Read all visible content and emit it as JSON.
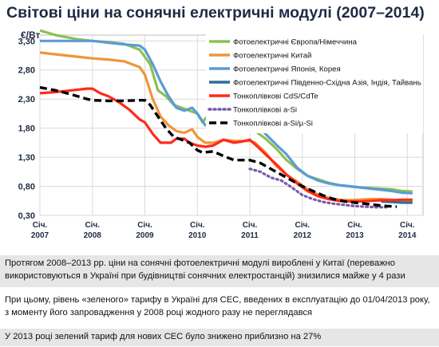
{
  "page": {
    "title": "Світові ціни на сонячні електричні модулі (2007–2014)"
  },
  "notes": [
    "Протягом 2008–2013 рр. ціни на сонячні фотоелектричні модулі вироблені у Китаї (переважно використовуються в Україні при будівництві сонячних електростанцій) знизилися майже у 4 рази",
    "При цьому, рівень «зеленого» тарифу в Україні для СЕС, введених в експлуатацію до 01/04/2013 року, з моменту його запровадження у 2008 році жодного разу не переглядався",
    "У 2013 році зелений тариф для нових СЕС було знижено приблизно на 27%"
  ],
  "chart_data": {
    "type": "line",
    "ylabel": "€/Вт",
    "ylim": [
      0.3,
      3.4
    ],
    "xlim": [
      2007,
      2014.3
    ],
    "yticks": [
      "3,30",
      "2,80",
      "2,30",
      "1,80",
      "1,30",
      "0,80",
      "0,30"
    ],
    "ytick_values": [
      3.3,
      2.8,
      2.3,
      1.8,
      1.3,
      0.8,
      0.3
    ],
    "xticks": [
      {
        "line1": "Січ.",
        "line2": "2007",
        "x": 2007
      },
      {
        "line1": "Січ.",
        "line2": "2008",
        "x": 2008
      },
      {
        "line1": "Січ.",
        "line2": "2009",
        "x": 2009
      },
      {
        "line1": "Січ.",
        "line2": "2010",
        "x": 2010
      },
      {
        "line1": "Січ.",
        "line2": "2011",
        "x": 2011
      },
      {
        "line1": "Січ.",
        "line2": "2012",
        "x": 2012
      },
      {
        "line1": "Січ.",
        "line2": "2013",
        "x": 2013
      },
      {
        "line1": "Січ.",
        "line2": "2014",
        "x": 2014
      }
    ],
    "grid": true,
    "legend": "top-right",
    "series": [
      {
        "name": "Фотоелектричні Європа/Німеччина",
        "color": "#8cc152",
        "dash": "solid",
        "points": [
          [
            2007.0,
            3.48
          ],
          [
            2007.3,
            3.4
          ],
          [
            2007.7,
            3.33
          ],
          [
            2008.0,
            3.3
          ],
          [
            2008.3,
            3.28
          ],
          [
            2008.6,
            3.25
          ],
          [
            2008.9,
            3.15
          ],
          [
            2009.1,
            2.9
          ],
          [
            2009.25,
            2.45
          ],
          [
            2009.4,
            2.35
          ],
          [
            2009.55,
            2.2
          ],
          [
            2009.7,
            2.15
          ],
          [
            2009.85,
            2.1
          ],
          [
            2010.0,
            2.05
          ],
          [
            2010.1,
            1.9
          ],
          [
            2010.2,
            2.02
          ],
          [
            2010.35,
            1.95
          ],
          [
            2010.5,
            1.98
          ],
          [
            2010.7,
            1.92
          ],
          [
            2010.9,
            1.85
          ],
          [
            2011.0,
            1.82
          ],
          [
            2011.1,
            1.75
          ],
          [
            2011.3,
            1.62
          ],
          [
            2011.5,
            1.45
          ],
          [
            2011.7,
            1.25
          ],
          [
            2011.9,
            1.1
          ],
          [
            2012.1,
            0.98
          ],
          [
            2012.3,
            0.92
          ],
          [
            2012.5,
            0.86
          ],
          [
            2012.7,
            0.82
          ],
          [
            2012.9,
            0.8
          ],
          [
            2013.1,
            0.78
          ],
          [
            2013.3,
            0.77
          ],
          [
            2013.5,
            0.76
          ],
          [
            2013.7,
            0.75
          ],
          [
            2013.9,
            0.72
          ],
          [
            2014.1,
            0.71
          ]
        ]
      },
      {
        "name": "Фотоелектричні Китай",
        "color": "#f0953a",
        "dash": "solid",
        "points": [
          [
            2007.0,
            3.1
          ],
          [
            2007.3,
            3.07
          ],
          [
            2007.7,
            3.03
          ],
          [
            2008.0,
            3.0
          ],
          [
            2008.3,
            2.98
          ],
          [
            2008.6,
            2.95
          ],
          [
            2008.9,
            2.85
          ],
          [
            2009.0,
            2.72
          ],
          [
            2009.15,
            2.3
          ],
          [
            2009.3,
            2.0
          ],
          [
            2009.45,
            1.85
          ],
          [
            2009.6,
            1.75
          ],
          [
            2009.75,
            1.72
          ],
          [
            2009.9,
            1.78
          ],
          [
            2010.0,
            1.65
          ],
          [
            2010.15,
            1.55
          ],
          [
            2010.3,
            1.55
          ],
          [
            2010.5,
            1.6
          ],
          [
            2010.7,
            1.58
          ],
          [
            2010.85,
            1.58
          ],
          [
            2011.0,
            1.58
          ],
          [
            2011.1,
            1.55
          ],
          [
            2011.3,
            1.38
          ],
          [
            2011.5,
            1.15
          ],
          [
            2011.7,
            1.0
          ],
          [
            2011.9,
            0.88
          ],
          [
            2012.1,
            0.75
          ],
          [
            2012.3,
            0.66
          ],
          [
            2012.5,
            0.6
          ],
          [
            2012.7,
            0.57
          ],
          [
            2012.9,
            0.56
          ],
          [
            2013.1,
            0.57
          ],
          [
            2013.3,
            0.58
          ],
          [
            2013.5,
            0.58
          ],
          [
            2013.7,
            0.57
          ],
          [
            2013.9,
            0.55
          ],
          [
            2014.1,
            0.56
          ]
        ]
      },
      {
        "name": "Фотоелектричні Японія, Корея",
        "color": "#5b9bd5",
        "dash": "solid",
        "points": [
          [
            2007.0,
            3.3
          ],
          [
            2007.3,
            3.3
          ],
          [
            2007.7,
            3.3
          ],
          [
            2008.0,
            3.3
          ],
          [
            2008.3,
            3.27
          ],
          [
            2008.6,
            3.24
          ],
          [
            2008.9,
            3.22
          ],
          [
            2009.0,
            3.15
          ],
          [
            2009.15,
            2.9
          ],
          [
            2009.3,
            2.6
          ],
          [
            2009.45,
            2.35
          ],
          [
            2009.6,
            2.15
          ],
          [
            2009.75,
            2.1
          ],
          [
            2009.9,
            2.15
          ],
          [
            2010.0,
            2.05
          ],
          [
            2010.15,
            1.85
          ],
          [
            2010.3,
            1.95
          ],
          [
            2010.5,
            1.97
          ],
          [
            2010.7,
            1.95
          ],
          [
            2010.85,
            1.93
          ],
          [
            2011.0,
            1.9
          ],
          [
            2011.15,
            1.85
          ],
          [
            2011.3,
            1.7
          ],
          [
            2011.5,
            1.52
          ],
          [
            2011.7,
            1.35
          ],
          [
            2011.9,
            1.12
          ],
          [
            2012.1,
            0.98
          ],
          [
            2012.3,
            0.9
          ],
          [
            2012.5,
            0.85
          ],
          [
            2012.7,
            0.82
          ],
          [
            2012.9,
            0.8
          ],
          [
            2013.1,
            0.78
          ],
          [
            2013.3,
            0.76
          ],
          [
            2013.5,
            0.74
          ],
          [
            2013.7,
            0.72
          ],
          [
            2013.9,
            0.69
          ],
          [
            2014.1,
            0.68
          ]
        ]
      },
      {
        "name": "Фотоелектричні Південно-Східна Азія, Індія, Тайвань",
        "color": "#2a6f97",
        "dash": "solid",
        "points": [
          [
            2013.5,
            0.54
          ],
          [
            2013.7,
            0.53
          ],
          [
            2013.9,
            0.52
          ],
          [
            2014.1,
            0.52
          ]
        ]
      },
      {
        "name": "Тонкоплівкові CdS/CdTe",
        "color": "#ff2a1a",
        "dash": "solid",
        "points": [
          [
            2007.0,
            2.4
          ],
          [
            2007.3,
            2.42
          ],
          [
            2007.6,
            2.45
          ],
          [
            2007.9,
            2.48
          ],
          [
            2008.0,
            2.48
          ],
          [
            2008.15,
            2.4
          ],
          [
            2008.3,
            2.35
          ],
          [
            2008.5,
            2.25
          ],
          [
            2008.7,
            2.12
          ],
          [
            2008.9,
            1.95
          ],
          [
            2009.0,
            1.9
          ],
          [
            2009.15,
            1.7
          ],
          [
            2009.3,
            1.55
          ],
          [
            2009.5,
            1.55
          ],
          [
            2009.6,
            1.62
          ],
          [
            2009.75,
            1.62
          ],
          [
            2009.85,
            1.55
          ],
          [
            2010.0,
            1.5
          ],
          [
            2010.15,
            1.48
          ],
          [
            2010.3,
            1.5
          ],
          [
            2010.5,
            1.6
          ],
          [
            2010.7,
            1.55
          ],
          [
            2010.85,
            1.57
          ],
          [
            2011.0,
            1.6
          ],
          [
            2011.15,
            1.48
          ],
          [
            2011.3,
            1.35
          ],
          [
            2011.5,
            1.18
          ],
          [
            2011.7,
            1.0
          ],
          [
            2011.9,
            0.85
          ],
          [
            2012.1,
            0.72
          ],
          [
            2012.3,
            0.63
          ],
          [
            2012.5,
            0.58
          ],
          [
            2012.7,
            0.55
          ],
          [
            2012.9,
            0.54
          ],
          [
            2013.1,
            0.54
          ],
          [
            2013.3,
            0.55
          ],
          [
            2013.5,
            0.56
          ],
          [
            2013.7,
            0.56
          ],
          [
            2013.9,
            0.57
          ],
          [
            2014.1,
            0.57
          ]
        ]
      },
      {
        "name": "Тонкоплівкові a-Si",
        "color": "#7b5aa6",
        "dash": "dotted",
        "points": [
          [
            2011.0,
            1.1
          ],
          [
            2011.2,
            1.05
          ],
          [
            2011.4,
            0.95
          ],
          [
            2011.6,
            0.9
          ],
          [
            2011.8,
            0.78
          ],
          [
            2012.0,
            0.65
          ],
          [
            2012.2,
            0.58
          ],
          [
            2012.4,
            0.53
          ],
          [
            2012.6,
            0.5
          ],
          [
            2012.8,
            0.48
          ],
          [
            2013.0,
            0.46
          ],
          [
            2013.2,
            0.45
          ],
          [
            2013.4,
            0.44
          ],
          [
            2013.6,
            0.44
          ]
        ]
      },
      {
        "name": "Тонкоплівкові a-Si/µ-Si",
        "color": "#000000",
        "dash": "dashed",
        "points": [
          [
            2007.0,
            2.5
          ],
          [
            2007.3,
            2.45
          ],
          [
            2007.6,
            2.38
          ],
          [
            2007.9,
            2.3
          ],
          [
            2008.0,
            2.28
          ],
          [
            2008.3,
            2.27
          ],
          [
            2008.6,
            2.27
          ],
          [
            2008.9,
            2.28
          ],
          [
            2009.0,
            2.28
          ],
          [
            2009.1,
            2.2
          ],
          [
            2009.25,
            2.0
          ],
          [
            2009.4,
            1.8
          ],
          [
            2009.55,
            1.65
          ],
          [
            2009.7,
            1.6
          ],
          [
            2009.85,
            1.55
          ],
          [
            2010.0,
            1.42
          ],
          [
            2010.1,
            1.38
          ],
          [
            2010.3,
            1.4
          ],
          [
            2010.5,
            1.32
          ],
          [
            2010.7,
            1.25
          ],
          [
            2010.85,
            1.25
          ],
          [
            2011.0,
            1.25
          ],
          [
            2011.2,
            1.2
          ],
          [
            2011.4,
            1.1
          ],
          [
            2011.6,
            1.0
          ],
          [
            2011.8,
            0.9
          ],
          [
            2012.0,
            0.8
          ],
          [
            2012.2,
            0.72
          ],
          [
            2012.4,
            0.64
          ],
          [
            2012.6,
            0.58
          ],
          [
            2012.8,
            0.54
          ],
          [
            2013.0,
            0.52
          ],
          [
            2013.2,
            0.5
          ],
          [
            2013.4,
            0.48
          ],
          [
            2013.6,
            0.46
          ],
          [
            2013.8,
            0.45
          ]
        ]
      }
    ]
  }
}
